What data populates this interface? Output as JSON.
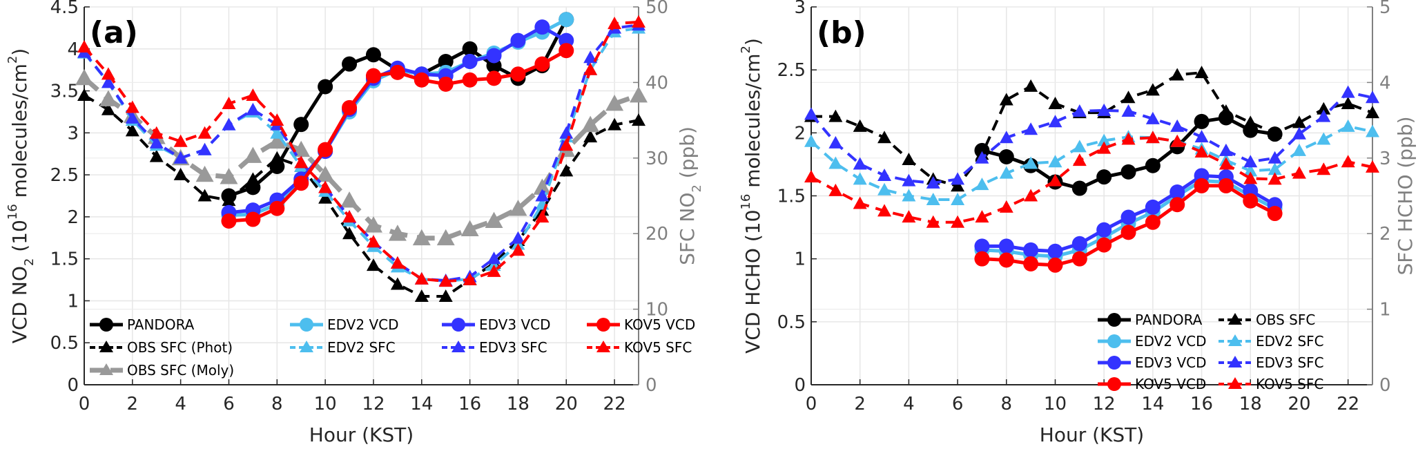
{
  "chart_data": [
    {
      "type": "line",
      "panel_label": "(a)",
      "xlabel": "Hour (KST)",
      "ylabel": "VCD NO2 (10^16 molecules/cm^2)",
      "ylabel_parts": {
        "main": "VCD NO",
        "sub": "2",
        "open": " (10",
        "sup": "16",
        "rest": " molecules/cm",
        "sup2": "2",
        "close": ")"
      },
      "y2label": "SFC NO2 (ppb)",
      "y2label_parts": {
        "main": "SFC NO",
        "sub": "2",
        "rest": " (ppb)"
      },
      "xlim": [
        0,
        23
      ],
      "ylim": [
        0,
        4.5
      ],
      "y2lim": [
        0,
        50
      ],
      "xticks": [
        "0",
        "2",
        "4",
        "6",
        "8",
        "10",
        "12",
        "14",
        "16",
        "18",
        "20",
        "22"
      ],
      "yticks": [
        "0",
        "0.5",
        "1",
        "1.5",
        "2",
        "2.5",
        "3",
        "3.5",
        "4",
        "4.5"
      ],
      "y2ticks": [
        "0",
        "10",
        "20",
        "30",
        "40",
        "50"
      ],
      "grid": true,
      "legend_position": "bottom-left",
      "series": [
        {
          "name": "PANDORA",
          "axis": "left",
          "style": "solid-circle",
          "color": "#000000",
          "x": [
            6,
            7,
            8,
            9,
            10,
            11,
            12,
            13,
            14,
            15,
            16,
            17,
            18,
            19,
            20
          ],
          "values": [
            2.25,
            2.35,
            2.6,
            3.1,
            3.55,
            3.82,
            3.93,
            3.75,
            3.7,
            3.85,
            4.0,
            3.8,
            3.65,
            3.8,
            4.35
          ]
        },
        {
          "name": "OBS SFC (Phot)",
          "axis": "right",
          "style": "dash-triangle",
          "color": "#000000",
          "x": [
            0,
            1,
            2,
            3,
            4,
            5,
            6,
            7,
            8,
            9,
            10,
            11,
            12,
            13,
            14,
            15,
            16,
            17,
            18,
            19,
            20,
            21,
            22,
            23
          ],
          "values": [
            38.3,
            36.4,
            33.6,
            30.2,
            27.8,
            25.0,
            24.4,
            27.2,
            30.0,
            28.9,
            24.7,
            20.0,
            15.8,
            13.3,
            11.7,
            11.7,
            13.9,
            16.1,
            19.1,
            23.1,
            28.3,
            32.8,
            34.4,
            35.0
          ]
        },
        {
          "name": "OBS SFC (Moly)",
          "axis": "right",
          "style": "dash-triangle-thick",
          "color": "#999999",
          "x": [
            0,
            1,
            2,
            3,
            4,
            5,
            6,
            7,
            8,
            9,
            10,
            11,
            12,
            13,
            14,
            15,
            16,
            17,
            18,
            19,
            20,
            21,
            22,
            23
          ],
          "values": [
            40.6,
            37.8,
            35.6,
            32.8,
            30.0,
            27.8,
            27.5,
            30.3,
            32.2,
            31.1,
            27.8,
            24.4,
            21.1,
            20.0,
            19.4,
            19.4,
            20.6,
            21.7,
            23.3,
            26.1,
            31.1,
            34.4,
            37.2,
            38.3
          ]
        },
        {
          "name": "EDV2 VCD",
          "axis": "left",
          "style": "solid-circle",
          "color": "#4DBEEE",
          "x": [
            6,
            7,
            8,
            9,
            10,
            11,
            12,
            13,
            14,
            15,
            16,
            17,
            18,
            19,
            20
          ],
          "values": [
            2.02,
            2.03,
            2.15,
            2.42,
            2.78,
            3.25,
            3.62,
            3.75,
            3.7,
            3.72,
            3.85,
            3.95,
            4.08,
            4.2,
            4.35
          ]
        },
        {
          "name": "EDV2 SFC",
          "axis": "right",
          "style": "dash-triangle",
          "color": "#4DBEEE",
          "x": [
            0,
            1,
            2,
            3,
            4,
            5,
            6,
            7,
            8,
            9,
            10,
            11,
            12,
            13,
            14,
            15,
            16,
            17,
            18,
            19,
            20,
            21,
            22,
            23
          ],
          "values": [
            43.9,
            40.0,
            35.0,
            31.7,
            30.0,
            31.1,
            34.4,
            36.1,
            33.3,
            28.9,
            25.6,
            21.7,
            18.3,
            15.6,
            14.0,
            13.7,
            14.0,
            15.8,
            18.6,
            23.9,
            32.8,
            41.7,
            46.7,
            47.2
          ]
        },
        {
          "name": "EDV3 VCD",
          "axis": "left",
          "style": "solid-circle",
          "color": "#3333FF",
          "x": [
            6,
            7,
            8,
            9,
            10,
            11,
            12,
            13,
            14,
            15,
            16,
            17,
            18,
            19,
            20
          ],
          "values": [
            2.05,
            2.08,
            2.2,
            2.45,
            2.78,
            3.28,
            3.65,
            3.77,
            3.7,
            3.68,
            3.85,
            3.92,
            4.1,
            4.26,
            4.1
          ]
        },
        {
          "name": "EDV3 SFC",
          "axis": "right",
          "style": "dash-triangle",
          "color": "#3333FF",
          "x": [
            0,
            1,
            2,
            3,
            4,
            5,
            6,
            7,
            8,
            9,
            10,
            11,
            12,
            13,
            14,
            15,
            16,
            17,
            18,
            19,
            20,
            21,
            22,
            23
          ],
          "values": [
            44.0,
            40.0,
            35.3,
            32.0,
            30.0,
            31.1,
            34.4,
            36.4,
            34.4,
            29.4,
            26.1,
            22.2,
            18.9,
            16.1,
            14.0,
            13.8,
            14.3,
            16.7,
            19.4,
            25.0,
            33.3,
            43.3,
            47.2,
            47.6
          ]
        },
        {
          "name": "KOV5 VCD",
          "axis": "left",
          "style": "solid-circle",
          "color": "#FF0000",
          "x": [
            6,
            7,
            8,
            9,
            10,
            11,
            12,
            13,
            14,
            15,
            16,
            17,
            18,
            19,
            20
          ],
          "values": [
            1.95,
            1.97,
            2.1,
            2.4,
            2.8,
            3.3,
            3.68,
            3.72,
            3.63,
            3.58,
            3.63,
            3.65,
            3.7,
            3.82,
            3.98
          ]
        },
        {
          "name": "KOV5 SFC",
          "axis": "right",
          "style": "dash-triangle",
          "color": "#FF0000",
          "x": [
            0,
            1,
            2,
            3,
            4,
            5,
            6,
            7,
            8,
            9,
            10,
            11,
            12,
            13,
            14,
            15,
            16,
            17,
            18,
            19,
            20,
            21,
            22,
            23
          ],
          "values": [
            44.7,
            41.1,
            36.7,
            33.3,
            32.2,
            33.3,
            37.2,
            38.3,
            35.0,
            29.4,
            26.1,
            22.2,
            18.9,
            16.1,
            14.0,
            13.7,
            13.9,
            15.0,
            17.8,
            22.2,
            31.7,
            41.7,
            47.8,
            48.0
          ]
        }
      ],
      "legend": {
        "columns": [
          [
            "PANDORA",
            "OBS SFC (Phot)",
            "OBS SFC (Moly)"
          ],
          [
            "EDV2 VCD",
            "EDV2 SFC"
          ],
          [
            "EDV3 VCD",
            "EDV3 SFC"
          ],
          [
            "KOV5 VCD",
            "KOV5 SFC"
          ]
        ]
      }
    },
    {
      "type": "line",
      "panel_label": "(b)",
      "xlabel": "Hour (KST)",
      "ylabel": "VCD HCHO (10^16 molecules/cm^2)",
      "ylabel_parts": {
        "main": "VCD HCHO",
        "open": " (10",
        "sup": "16",
        "rest": " molecules/cm",
        "sup2": "2",
        "close": ")"
      },
      "y2label": "SFC HCHO (ppb)",
      "xlim": [
        0,
        23
      ],
      "ylim": [
        0,
        3
      ],
      "y2lim": [
        0,
        5
      ],
      "xticks": [
        "0",
        "2",
        "4",
        "6",
        "8",
        "10",
        "12",
        "14",
        "16",
        "18",
        "20",
        "22"
      ],
      "yticks": [
        "0",
        "0.5",
        "1",
        "1.5",
        "2",
        "2.5",
        "3"
      ],
      "y2ticks": [
        "0",
        "1",
        "2",
        "3",
        "4",
        "5"
      ],
      "grid": true,
      "legend_position": "bottom-right",
      "series": [
        {
          "name": "PANDORA",
          "axis": "left",
          "style": "solid-circle",
          "color": "#000000",
          "x": [
            7,
            8,
            9,
            10,
            11,
            12,
            13,
            14,
            15,
            16,
            17,
            18,
            19
          ],
          "values": [
            1.86,
            1.81,
            1.74,
            1.61,
            1.56,
            1.65,
            1.69,
            1.74,
            1.89,
            2.09,
            2.12,
            2.02,
            1.99
          ]
        },
        {
          "name": "OBS SFC",
          "axis": "right",
          "style": "dash-triangle",
          "color": "#000000",
          "x": [
            0,
            1,
            2,
            3,
            4,
            5,
            6,
            7,
            8,
            9,
            10,
            11,
            12,
            13,
            14,
            15,
            16,
            17,
            18,
            19,
            20,
            21,
            22,
            23
          ],
          "values": [
            3.55,
            3.55,
            3.42,
            3.27,
            2.98,
            2.72,
            2.63,
            3.05,
            3.77,
            3.95,
            3.72,
            3.6,
            3.6,
            3.8,
            3.9,
            4.1,
            4.13,
            3.62,
            3.47,
            3.33,
            3.47,
            3.65,
            3.72,
            3.6
          ]
        },
        {
          "name": "EDV2 VCD",
          "axis": "left",
          "style": "solid-circle",
          "color": "#4DBEEE",
          "x": [
            7,
            8,
            9,
            10,
            11,
            12,
            13,
            14,
            15,
            16,
            17,
            18,
            19
          ],
          "values": [
            1.07,
            1.06,
            1.03,
            1.02,
            1.07,
            1.17,
            1.28,
            1.37,
            1.5,
            1.62,
            1.61,
            1.5,
            1.4
          ]
        },
        {
          "name": "EDV2 SFC",
          "axis": "right",
          "style": "dash-triangle",
          "color": "#4DBEEE",
          "x": [
            0,
            1,
            2,
            3,
            4,
            5,
            6,
            7,
            8,
            9,
            10,
            11,
            12,
            13,
            14,
            15,
            16,
            17,
            18,
            19,
            20,
            21,
            22,
            23
          ],
          "values": [
            3.22,
            2.93,
            2.72,
            2.58,
            2.5,
            2.45,
            2.45,
            2.65,
            2.8,
            2.93,
            2.95,
            3.15,
            3.23,
            3.28,
            3.27,
            3.22,
            3.12,
            2.97,
            2.83,
            2.85,
            3.1,
            3.25,
            3.42,
            3.35
          ]
        },
        {
          "name": "EDV3 VCD",
          "axis": "left",
          "style": "solid-circle",
          "color": "#3333FF",
          "x": [
            7,
            8,
            9,
            10,
            11,
            12,
            13,
            14,
            15,
            16,
            17,
            18,
            19
          ],
          "values": [
            1.1,
            1.1,
            1.07,
            1.06,
            1.12,
            1.23,
            1.33,
            1.41,
            1.53,
            1.66,
            1.65,
            1.54,
            1.43
          ]
        },
        {
          "name": "EDV3 SFC",
          "axis": "right",
          "style": "dash-triangle",
          "color": "#3333FF",
          "x": [
            0,
            1,
            2,
            3,
            4,
            5,
            6,
            7,
            8,
            9,
            10,
            11,
            12,
            13,
            14,
            15,
            16,
            17,
            18,
            19,
            20,
            21,
            22,
            23
          ],
          "values": [
            3.58,
            3.2,
            2.92,
            2.77,
            2.7,
            2.67,
            2.72,
            3.0,
            3.27,
            3.38,
            3.48,
            3.62,
            3.63,
            3.62,
            3.52,
            3.42,
            3.28,
            3.1,
            2.95,
            3.0,
            3.32,
            3.55,
            3.87,
            3.8
          ]
        },
        {
          "name": "KOV5 VCD",
          "axis": "left",
          "style": "solid-circle",
          "color": "#FF0000",
          "x": [
            7,
            8,
            9,
            10,
            11,
            12,
            13,
            14,
            15,
            16,
            17,
            18,
            19
          ],
          "values": [
            1.0,
            0.99,
            0.96,
            0.95,
            1.0,
            1.11,
            1.21,
            1.29,
            1.43,
            1.58,
            1.58,
            1.46,
            1.36
          ]
        },
        {
          "name": "KOV5 SFC",
          "axis": "right",
          "style": "dash-triangle",
          "color": "#FF0000",
          "x": [
            0,
            1,
            2,
            3,
            4,
            5,
            6,
            7,
            8,
            9,
            10,
            11,
            12,
            13,
            14,
            15,
            16,
            17,
            18,
            19,
            20,
            21,
            22,
            23
          ],
          "values": [
            2.75,
            2.57,
            2.4,
            2.3,
            2.22,
            2.15,
            2.15,
            2.22,
            2.35,
            2.5,
            2.7,
            2.97,
            3.13,
            3.25,
            3.27,
            3.22,
            3.08,
            2.92,
            2.73,
            2.72,
            2.8,
            2.85,
            2.95,
            2.88
          ]
        }
      ],
      "legend": {
        "columns": [
          [
            "PANDORA",
            "EDV2 VCD",
            "EDV3 VCD",
            "KOV5 VCD"
          ],
          [
            "OBS SFC",
            "EDV2 SFC",
            "EDV3 SFC",
            "KOV5 SFC"
          ]
        ]
      }
    }
  ]
}
